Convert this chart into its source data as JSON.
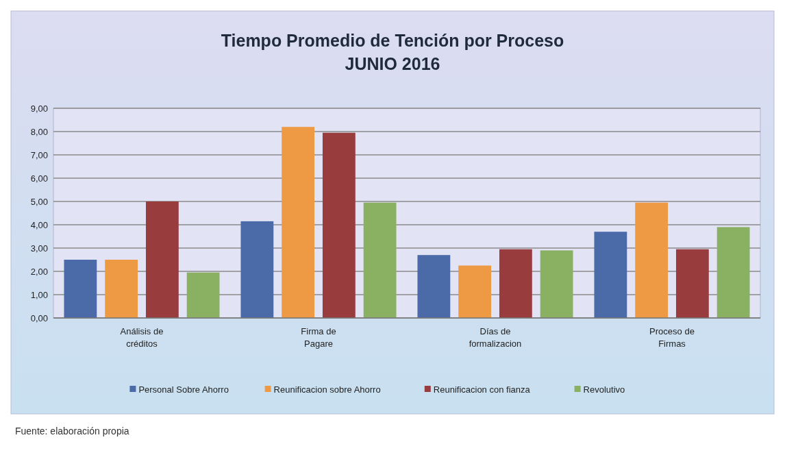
{
  "chart_data": {
    "type": "bar",
    "title": "Tiempo Promedio de Tención por Proceso",
    "subtitle": "JUNIO 2016",
    "categories": [
      "Análisis de créditos",
      "Firma de Pagare",
      "Días de formalizacion",
      "Proceso de Firmas"
    ],
    "series": [
      {
        "name": "Personal Sobre Ahorro",
        "color": "#4a6aa8",
        "values": [
          2.5,
          4.15,
          2.7,
          3.7
        ]
      },
      {
        "name": "Reunificacion sobre Ahorro",
        "color": "#ee9a45",
        "values": [
          2.5,
          8.2,
          2.25,
          4.95
        ]
      },
      {
        "name": "Reunificacion con fianza",
        "color": "#983c3e",
        "values": [
          5.0,
          7.95,
          2.95,
          2.95
        ]
      },
      {
        "name": "Revolutivo",
        "color": "#8ab062",
        "values": [
          1.95,
          4.95,
          2.9,
          3.9
        ]
      }
    ],
    "ylim": [
      0,
      9
    ],
    "yticks": [
      {
        "value": 0,
        "label": "0,00"
      },
      {
        "value": 1,
        "label": "1,00"
      },
      {
        "value": 2,
        "label": "2,00"
      },
      {
        "value": 3,
        "label": "3,00"
      },
      {
        "value": 4,
        "label": "4,00"
      },
      {
        "value": 5,
        "label": "5,00"
      },
      {
        "value": 6,
        "label": "6,00"
      },
      {
        "value": 7,
        "label": "7,00"
      },
      {
        "value": 8,
        "label": "8,00"
      },
      {
        "value": 9,
        "label": "9,00"
      }
    ],
    "grid": "y",
    "legend": "bottom",
    "annotations": [
      "Fuente: elaboración propia"
    ]
  }
}
